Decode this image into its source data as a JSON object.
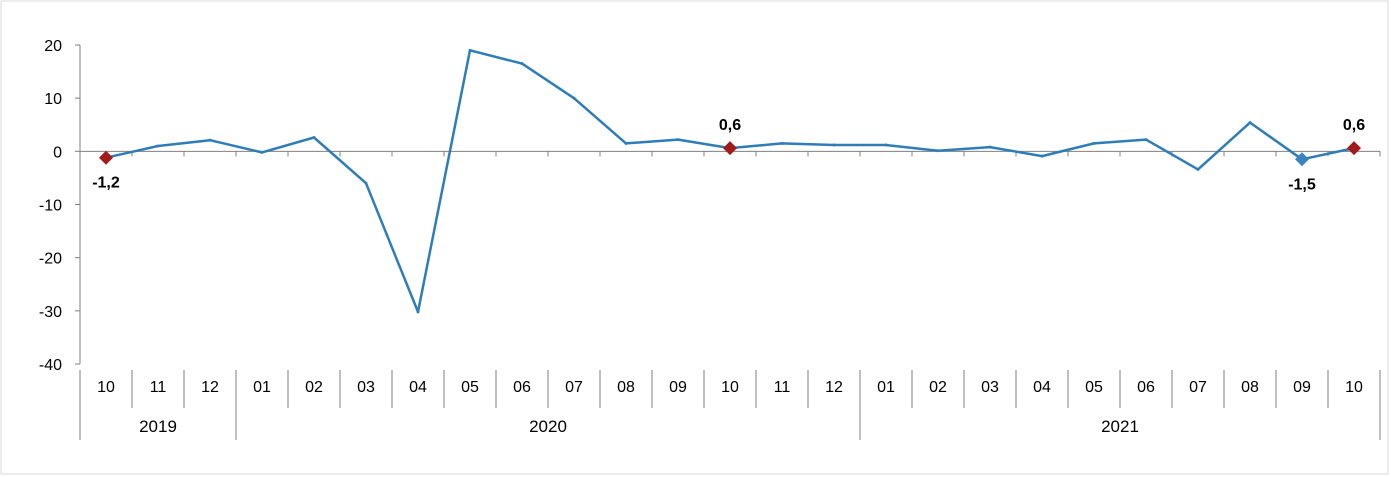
{
  "chart_data": {
    "type": "line",
    "categories": [
      "10",
      "11",
      "12",
      "01",
      "02",
      "03",
      "04",
      "05",
      "06",
      "07",
      "08",
      "09",
      "10",
      "11",
      "12",
      "01",
      "02",
      "03",
      "04",
      "05",
      "06",
      "07",
      "08",
      "09",
      "10"
    ],
    "years": [
      {
        "label": "2019",
        "start": 0,
        "end": 2
      },
      {
        "label": "2020",
        "start": 3,
        "end": 14
      },
      {
        "label": "2021",
        "start": 15,
        "end": 24
      }
    ],
    "series": [
      {
        "values": [
          -1.2,
          1.0,
          2.1,
          -0.2,
          2.6,
          -6.0,
          -30.2,
          19.0,
          16.5,
          10.0,
          1.5,
          2.2,
          0.6,
          1.5,
          1.2,
          1.2,
          0.1,
          0.8,
          -0.9,
          1.5,
          2.2,
          -3.4,
          5.4,
          -1.5,
          0.6
        ]
      }
    ],
    "annotations": [
      {
        "index": 0,
        "label": "-1,2",
        "position": "below",
        "marker_color": "#a31a1a"
      },
      {
        "index": 12,
        "label": "0,6",
        "position": "above",
        "marker_color": "#a31a1a"
      },
      {
        "index": 23,
        "label": "-1,5",
        "position": "below",
        "marker_color": "#3a84c2"
      },
      {
        "index": 24,
        "label": "0,6",
        "position": "above",
        "marker_color": "#a31a1a"
      }
    ],
    "yticks": [
      20,
      10,
      0,
      -10,
      -20,
      -30,
      -40
    ],
    "ylim": [
      -40,
      20
    ],
    "line_color": "#2e7db8",
    "grid": false,
    "legend": "none"
  }
}
